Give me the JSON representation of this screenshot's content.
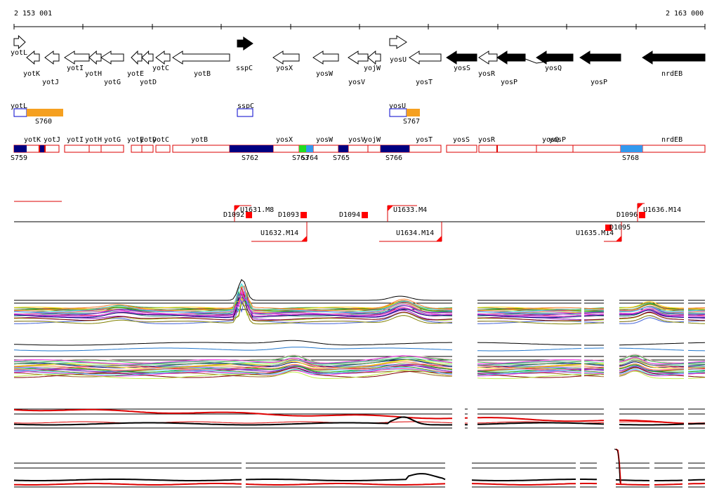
{
  "ruler": {
    "start_label": "2 153 001",
    "end_label": "2 163 000"
  },
  "genes": [
    {
      "name": "yotL",
      "strand": "+",
      "filled": false
    },
    {
      "name": "yotK",
      "strand": "-",
      "filled": false
    },
    {
      "name": "yotJ",
      "strand": "-",
      "filled": false
    },
    {
      "name": "yotI",
      "strand": "-",
      "filled": false
    },
    {
      "name": "yotH",
      "strand": "-",
      "filled": false
    },
    {
      "name": "yotG",
      "strand": "-",
      "filled": false
    },
    {
      "name": "yotE",
      "strand": "-",
      "filled": false
    },
    {
      "name": "yotD",
      "strand": "-",
      "filled": false
    },
    {
      "name": "yotC",
      "strand": "-",
      "filled": false
    },
    {
      "name": "yotB",
      "strand": "-",
      "filled": false
    },
    {
      "name": "sspC",
      "strand": "+",
      "filled": true
    },
    {
      "name": "yosX",
      "strand": "-",
      "filled": false
    },
    {
      "name": "yosW",
      "strand": "-",
      "filled": false
    },
    {
      "name": "yosV",
      "strand": "-",
      "filled": false
    },
    {
      "name": "yojW",
      "strand": "-",
      "filled": false
    },
    {
      "name": "yosU",
      "strand": "+",
      "filled": false
    },
    {
      "name": "yosT",
      "strand": "-",
      "filled": false
    },
    {
      "name": "yosS",
      "strand": "-",
      "filled": true
    },
    {
      "name": "yosR",
      "strand": "-",
      "filled": false
    },
    {
      "name": "yosP",
      "strand": "-",
      "filled": true
    },
    {
      "name": "yosQ",
      "strand": "-",
      "filled": true
    },
    {
      "name": "yosP",
      "strand": "-",
      "filled": true
    },
    {
      "name": "nrdEB",
      "strand": "-",
      "filled": true
    }
  ],
  "segment_track_1": {
    "labels": [
      "yotL",
      "sspC",
      "yosU"
    ],
    "segments": [
      "S760",
      "S767"
    ]
  },
  "segment_track_2": {
    "gene_labels": [
      "yotK",
      "yotJ",
      "yotI",
      "yotH",
      "yotG",
      "yotE",
      "yotD",
      "yotC",
      "yotB",
      "yosX",
      "yosW",
      "yosV",
      "yojW",
      "yosT",
      "yosS",
      "yosR",
      "yosQ",
      "yosP",
      "nrdEB"
    ],
    "segments": [
      "S759",
      "S762",
      "S763",
      "S764",
      "S765",
      "S766",
      "S768"
    ]
  },
  "features": {
    "upper": [
      "U1631.M8",
      "U1633.M4",
      "U1636.M14"
    ],
    "lower": [
      "U1632.M14",
      "U1634.M14",
      "U1635.M14"
    ],
    "downshifts": [
      "D1092",
      "D1093",
      "D1094",
      "D1095",
      "D1096"
    ]
  },
  "colors": {
    "gene_fill": "#000000",
    "segment_orange": "#f5a020",
    "segment_navy": "#000080",
    "segment_green": "#22dd22",
    "segment_blue": "#3399ee",
    "outline_red": "#dd0000",
    "outline_blue": "#0000cc",
    "feature_red": "#ff0000",
    "profile_black": "#000000",
    "profile_red": "#dd0000",
    "profile_blue": "#2277cc"
  },
  "profile_palette": [
    "#e6194b",
    "#3cb44b",
    "#ffd700",
    "#4363d8",
    "#f58231",
    "#911eb4",
    "#42d4f4",
    "#f032e6",
    "#bfef45",
    "#fabed4",
    "#469990",
    "#dcbeff",
    "#9a6324",
    "#800000",
    "#aaffc3",
    "#808000",
    "#000075",
    "#a9a9a9",
    "#00aa00",
    "#ff69b4"
  ]
}
